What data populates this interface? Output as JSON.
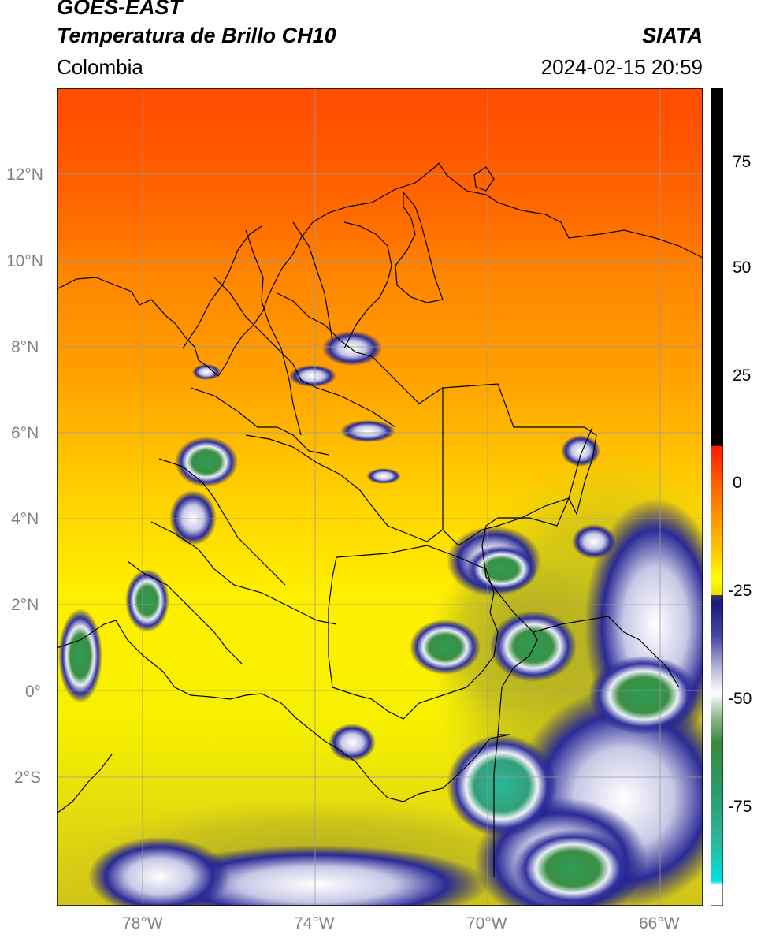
{
  "header": {
    "title_line1": "GOES-EAST",
    "title_line2": "Temperatura de Brillo CH10",
    "organization": "SIATA",
    "region": "Colombia",
    "datetime": "2024-02-15 20:59"
  },
  "map": {
    "lon_range": [
      -80,
      -65
    ],
    "lat_range": [
      -5,
      14
    ],
    "lon_ticks": [
      {
        "value": -78,
        "label": "78°W"
      },
      {
        "value": -74,
        "label": "74°W"
      },
      {
        "value": -70,
        "label": "70°W"
      },
      {
        "value": -66,
        "label": "66°W"
      }
    ],
    "lat_ticks": [
      {
        "value": 12,
        "label": "12°N"
      },
      {
        "value": 10,
        "label": "10°N"
      },
      {
        "value": 8,
        "label": "8°N"
      },
      {
        "value": 6,
        "label": "6°N"
      },
      {
        "value": 4,
        "label": "4°N"
      },
      {
        "value": 2,
        "label": "2°N"
      },
      {
        "value": 0,
        "label": "0°"
      },
      {
        "value": -2,
        "label": "2°S"
      }
    ],
    "grid": true
  },
  "colorbar": {
    "range": [
      -105,
      90
    ],
    "ticks": [
      {
        "value": 75,
        "label": "75"
      },
      {
        "value": 50,
        "label": "50"
      },
      {
        "value": 25,
        "label": "25"
      },
      {
        "value": 0,
        "label": "0"
      },
      {
        "value": -25,
        "label": "-25"
      },
      {
        "value": -50,
        "label": "-50"
      },
      {
        "value": -75,
        "label": "-75"
      }
    ],
    "colors": {
      "black": "#000000",
      "red": "#ff1a00",
      "orange": "#ff8c00",
      "yellow": "#ffff00",
      "olive": "#bdb820",
      "navy": "#1a1a80",
      "white": "#ffffff",
      "green": "#3a8a3a",
      "teal": "#2bb79a",
      "cyan": "#00e0e0"
    }
  }
}
